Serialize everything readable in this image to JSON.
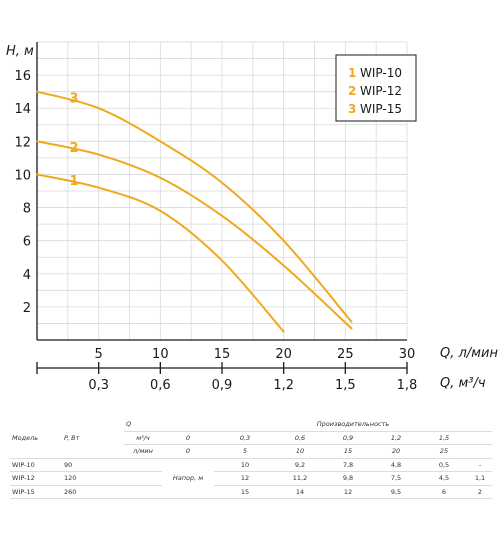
{
  "chart_data": {
    "type": "line",
    "ylabel": "H, м",
    "xlabel": "Q, л/мин",
    "x2label": "Q, м³/ч",
    "xlim": [
      0,
      30
    ],
    "ylim": [
      0,
      18
    ],
    "x_ticks": [
      5,
      10,
      15,
      20,
      25,
      30
    ],
    "x2_ticks": [
      "0,3",
      "0,6",
      "0,9",
      "1,2",
      "1,5",
      "1,8"
    ],
    "y_ticks": [
      2,
      4,
      6,
      8,
      10,
      12,
      14,
      16
    ],
    "grid": true,
    "legend_position": "top-right",
    "series": [
      {
        "label": "1",
        "name": "WIP-10",
        "x": [
          0,
          5,
          10,
          15,
          20
        ],
        "y": [
          10,
          9.2,
          7.8,
          4.8,
          0.5
        ]
      },
      {
        "label": "2",
        "name": "WIP-12",
        "x": [
          0,
          5,
          10,
          15,
          20,
          25.5
        ],
        "y": [
          12,
          11.2,
          9.8,
          7.5,
          4.5,
          0.7
        ]
      },
      {
        "label": "3",
        "name": "WIP-15",
        "x": [
          0,
          5,
          10,
          15,
          20,
          25.5
        ],
        "y": [
          15,
          14,
          12,
          9.5,
          6,
          1.1
        ]
      }
    ],
    "series_color": "#f0a81c"
  },
  "table": {
    "header_q": "Q",
    "header_model": "Модель",
    "header_power": "P, Вт",
    "header_perf": "Производительность",
    "unit_m3": "м³/ч",
    "unit_lmin": "л/мин",
    "head_label": "Напор, м",
    "m3_values": [
      "0",
      "0,3",
      "0,6",
      "0,9",
      "1,2",
      "1,5"
    ],
    "lmin_values": [
      "0",
      "5",
      "10",
      "15",
      "20",
      "25"
    ],
    "rows": [
      {
        "model": "WIP-10",
        "power": "90",
        "values": [
          "10",
          "9,2",
          "7,8",
          "4,8",
          "0,5",
          "-"
        ]
      },
      {
        "model": "WIP-12",
        "power": "120",
        "values": [
          "12",
          "11,2",
          "9,8",
          "7,5",
          "4,5",
          "1,1"
        ]
      },
      {
        "model": "WIP-15",
        "power": "260",
        "values": [
          "15",
          "14",
          "12",
          "9,5",
          "6",
          "2"
        ]
      }
    ]
  }
}
